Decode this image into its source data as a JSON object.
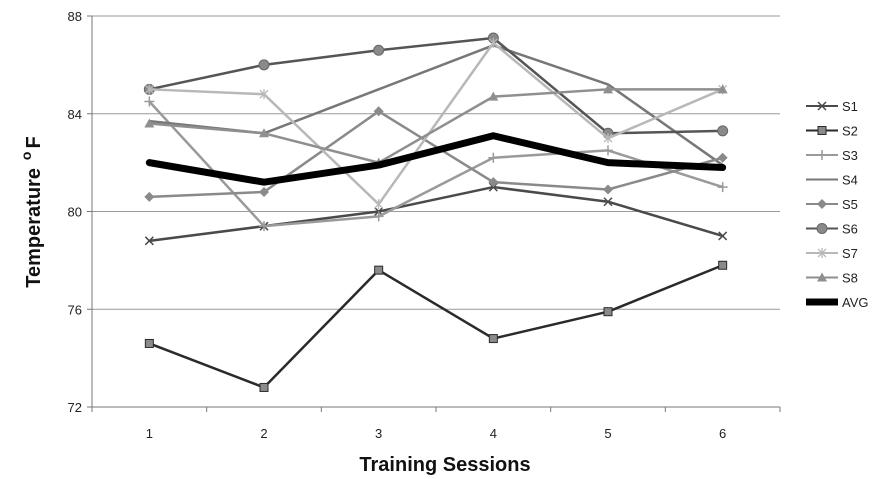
{
  "chart_data": {
    "type": "line",
    "title": "",
    "xlabel": "Training Sessions",
    "ylabel": {
      "main": "Temperature",
      "sup": "o",
      "unit": "F"
    },
    "categories": [
      "1",
      "2",
      "3",
      "4",
      "5",
      "6"
    ],
    "ylim": [
      72,
      88
    ],
    "yticks": [
      72,
      76,
      80,
      84,
      88
    ],
    "grid": "horizontal",
    "legend_position": "right",
    "series": [
      {
        "name": "S1",
        "marker": "x",
        "color": "#4a4a4a",
        "values": [
          78.8,
          79.4,
          80.0,
          81.0,
          80.4,
          79.0
        ]
      },
      {
        "name": "S2",
        "marker": "square",
        "color": "#2a2a2a",
        "values": [
          74.6,
          72.8,
          77.6,
          74.8,
          75.9,
          77.8
        ]
      },
      {
        "name": "S3",
        "marker": "plus",
        "color": "#9a9a9a",
        "values": [
          84.5,
          79.4,
          79.8,
          82.2,
          82.5,
          81.0
        ]
      },
      {
        "name": "S4",
        "marker": "none",
        "color": "#777777",
        "values": [
          83.7,
          83.2,
          85.0,
          86.8,
          85.2,
          81.9
        ]
      },
      {
        "name": "S5",
        "marker": "diamond",
        "color": "#8a8a8a",
        "values": [
          80.6,
          80.8,
          84.1,
          81.2,
          80.9,
          82.2
        ]
      },
      {
        "name": "S6",
        "marker": "circle",
        "color": "#555555",
        "values": [
          85.0,
          86.0,
          86.6,
          87.1,
          83.2,
          83.3
        ]
      },
      {
        "name": "S7",
        "marker": "star",
        "color": "#b8b8b8",
        "values": [
          85.0,
          84.8,
          80.3,
          86.9,
          83.0,
          85.0
        ]
      },
      {
        "name": "S8",
        "marker": "triangle",
        "color": "#8f8f8f",
        "values": [
          83.6,
          83.2,
          82.0,
          84.7,
          85.0,
          85.0
        ]
      },
      {
        "name": "AVG",
        "marker": "none",
        "color": "#000000",
        "width": 7,
        "values": [
          82.0,
          81.2,
          81.9,
          83.1,
          82.0,
          81.8
        ]
      }
    ]
  }
}
